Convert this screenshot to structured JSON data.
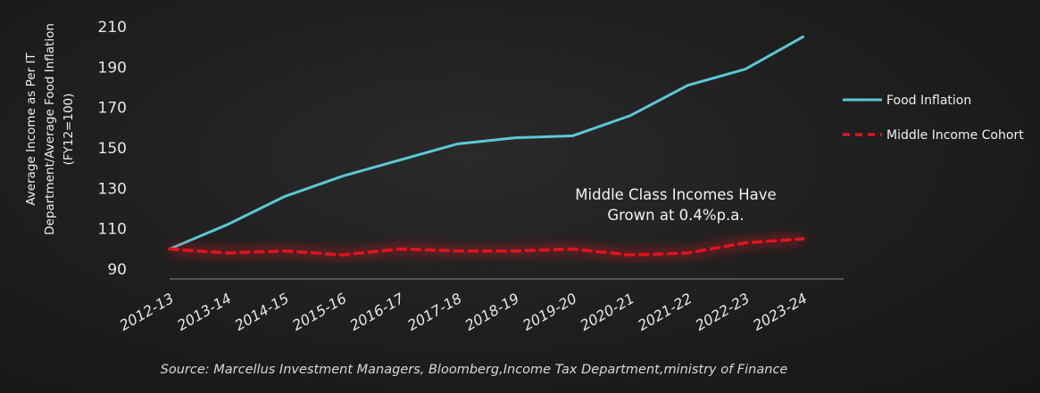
{
  "chart_data": {
    "type": "line",
    "ylabel_lines": [
      "Average Income as Per IT",
      "Department/Average Food Inflation",
      "(FY12=100)"
    ],
    "categories": [
      "2012-13",
      "2013-14",
      "2014-15",
      "2015-16",
      "2016-17",
      "2017-18",
      "2018-19",
      "2019-20",
      "2020-21",
      "2021-22",
      "2022-23",
      "2023-24"
    ],
    "yticks": [
      90,
      110,
      130,
      150,
      170,
      190,
      210
    ],
    "ylim": [
      90,
      210
    ],
    "series": [
      {
        "name": "Food Inflation",
        "color": "#5bc8d8",
        "style": "solid",
        "values": [
          100,
          112,
          126,
          136,
          144,
          152,
          155,
          156,
          166,
          181,
          189,
          205
        ]
      },
      {
        "name": "Middle Income Cohort",
        "color": "#e0141e",
        "style": "dashed",
        "values": [
          100,
          98,
          99,
          97,
          100,
          99,
          99,
          100,
          97,
          98,
          103,
          105
        ]
      }
    ],
    "annotation_lines": [
      "Middle Class Incomes Have",
      "Grown at 0.4%p.a."
    ],
    "legend_position": "right",
    "grid": false
  },
  "source": "Source: Marcellus Investment Managers, Bloomberg,Income Tax Department,ministry of Finance"
}
